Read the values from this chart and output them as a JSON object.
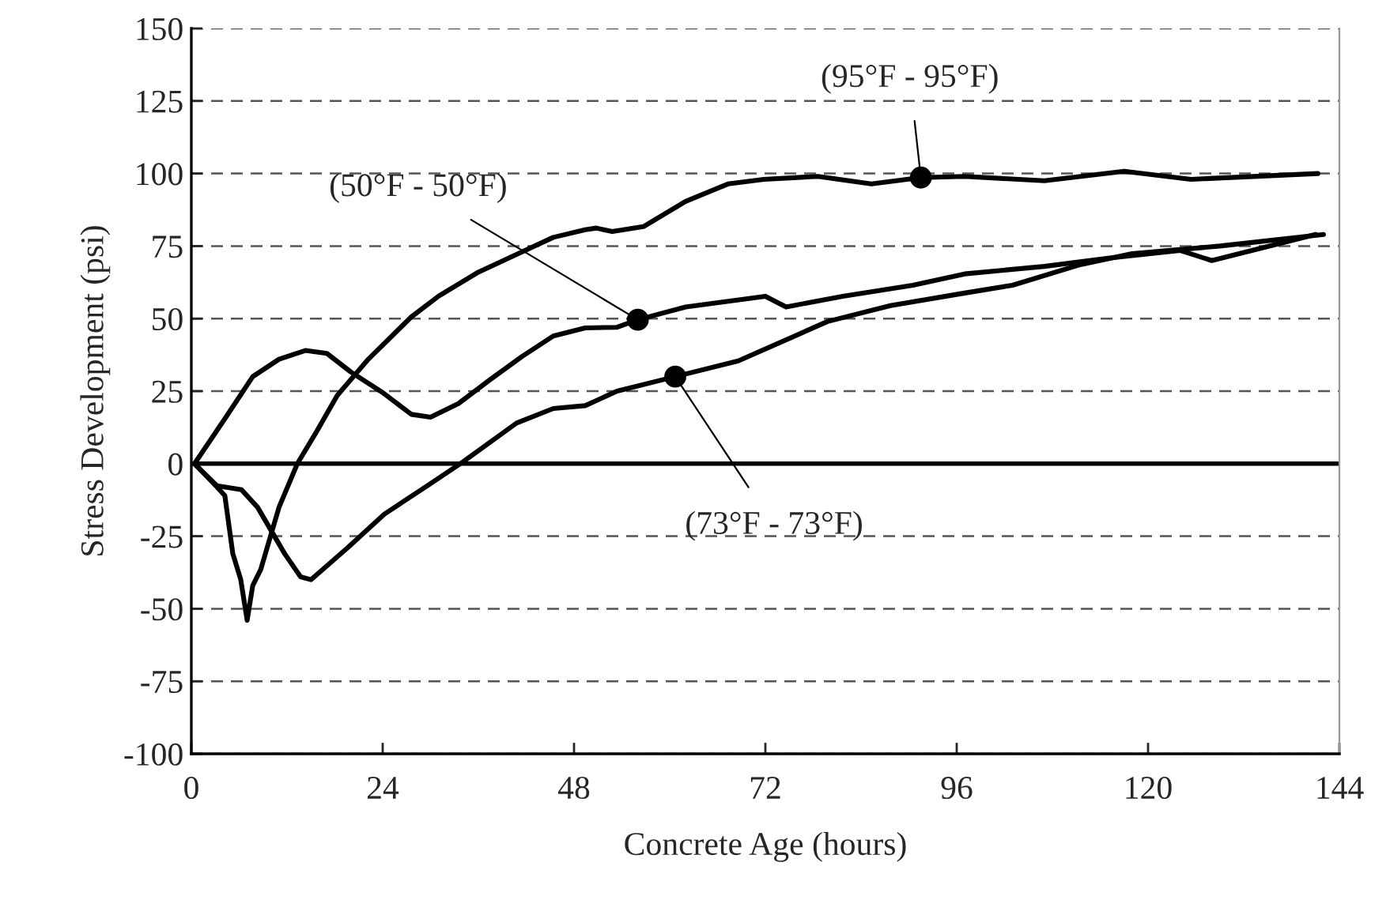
{
  "chart_data": {
    "type": "line",
    "xlabel": "Concrete Age (hours)",
    "ylabel": "Stress Development (psi)",
    "xlim": [
      0,
      144
    ],
    "xticks": [
      0,
      24,
      48,
      72,
      96,
      120,
      144
    ],
    "ylim": [
      -100,
      150
    ],
    "yticks": [
      -100,
      -75,
      -50,
      -25,
      0,
      25,
      50,
      75,
      100,
      125,
      150
    ],
    "grid": "y",
    "legend": false,
    "marker": "none",
    "line_style": "solid",
    "ref_lines": [
      {
        "axis": "y",
        "value": 0,
        "color": "#000000",
        "line_style": "solid"
      }
    ],
    "series": [
      {
        "color": "#000000",
        "x": [
          0.4,
          4.4,
          7.7,
          11,
          14.3,
          17,
          20,
          24,
          27.6,
          30,
          33.5,
          37.5,
          41.5,
          45.4,
          49.4,
          53.4,
          56,
          62,
          72,
          74.6,
          81.7,
          90.5,
          97,
          107,
          115,
          124,
          128,
          141
        ],
        "values": [
          0,
          16.3,
          30,
          36,
          39,
          38,
          31.6,
          24.5,
          17,
          16,
          20.7,
          29,
          37,
          44,
          46.8,
          47,
          49.6,
          54,
          57.7,
          54,
          57.7,
          61.5,
          65.4,
          68,
          70.8,
          73.5,
          70,
          79
        ]
      },
      {
        "color": "#000000",
        "x": [
          0.4,
          3.2,
          4.2,
          5.2,
          6.2,
          7,
          7.7,
          8.7,
          11,
          13.3,
          15.7,
          18.3,
          22.2,
          27.6,
          31,
          36,
          41,
          45.4,
          49.4,
          50.8,
          52.8,
          56.7,
          62,
          67.3,
          71.8,
          78.6,
          85.3,
          91.5,
          97,
          107,
          117,
          125.4,
          141.3
        ],
        "values": [
          0,
          -8,
          -11,
          -31,
          -40,
          -54,
          -42,
          -36.5,
          -15,
          0,
          11,
          23.5,
          36,
          50.6,
          57.7,
          66,
          72.4,
          78,
          80.6,
          81.2,
          80,
          81.7,
          90.4,
          96.4,
          98,
          99,
          96.4,
          98.6,
          99,
          97.5,
          100.8,
          98,
          100
        ]
      },
      {
        "color": "#000000",
        "x": [
          0.4,
          3.2,
          6.3,
          8.3,
          11.7,
          13.7,
          15,
          19.6,
          24.2,
          29.6,
          34,
          40.8,
          45.4,
          49.4,
          53.4,
          60.7,
          68.6,
          79.8,
          87.7,
          97,
          103,
          111.5,
          118,
          129,
          142
        ],
        "values": [
          0,
          -7.6,
          -9,
          -15,
          -31,
          -39,
          -40,
          -29,
          -17.4,
          -7.6,
          0.5,
          14,
          19,
          20,
          25,
          30,
          35.4,
          49,
          54.5,
          58.8,
          61.5,
          68.6,
          72.4,
          75,
          79
        ]
      }
    ],
    "annotations": [
      {
        "text": "(95°F - 95°F)",
        "x": 91.5,
        "y": 98.6
      },
      {
        "text": "(50°F - 50°F)",
        "x": 56,
        "y": 49.6
      },
      {
        "text": "(73°F - 73°F)",
        "x": 60.7,
        "y": 30
      }
    ]
  }
}
